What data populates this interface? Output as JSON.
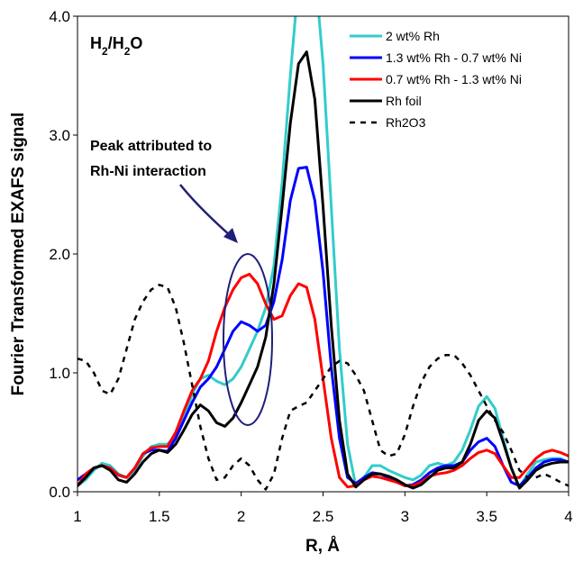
{
  "chart_data": {
    "type": "line",
    "xlabel": "R, Å",
    "ylabel": "Fourier Transformed EXAFS signal",
    "xlim": [
      1,
      4
    ],
    "ylim": [
      0,
      4
    ],
    "xticks": [
      "1",
      "1.5",
      "2",
      "2.5",
      "3",
      "3.5",
      "4"
    ],
    "yticks": [
      "0.0",
      "1.0",
      "2.0",
      "3.0",
      "4.0"
    ],
    "condition_label": {
      "main": "H",
      "sub1": "2",
      "mid": "/H",
      "sub2": "2",
      "end": "O"
    },
    "annotation": {
      "line1": "Peak attributed to",
      "line2": "Rh-Ni interaction"
    },
    "legend_position": "top-right",
    "series": [
      {
        "name": "2 wt% Rh",
        "color": "#33CCCC",
        "dash": "solid",
        "points": [
          [
            1.0,
            0.05
          ],
          [
            1.05,
            0.1
          ],
          [
            1.1,
            0.18
          ],
          [
            1.15,
            0.24
          ],
          [
            1.2,
            0.22
          ],
          [
            1.25,
            0.15
          ],
          [
            1.3,
            0.12
          ],
          [
            1.35,
            0.18
          ],
          [
            1.4,
            0.3
          ],
          [
            1.45,
            0.38
          ],
          [
            1.5,
            0.4
          ],
          [
            1.55,
            0.4
          ],
          [
            1.6,
            0.48
          ],
          [
            1.65,
            0.62
          ],
          [
            1.7,
            0.82
          ],
          [
            1.75,
            0.95
          ],
          [
            1.8,
            0.98
          ],
          [
            1.85,
            0.93
          ],
          [
            1.9,
            0.9
          ],
          [
            1.95,
            0.95
          ],
          [
            2.0,
            1.05
          ],
          [
            2.05,
            1.2
          ],
          [
            2.1,
            1.35
          ],
          [
            2.15,
            1.55
          ],
          [
            2.2,
            1.9
          ],
          [
            2.25,
            2.6
          ],
          [
            2.3,
            3.5
          ],
          [
            2.35,
            4.3
          ],
          [
            2.4,
            4.6
          ],
          [
            2.45,
            4.4
          ],
          [
            2.5,
            3.6
          ],
          [
            2.55,
            2.4
          ],
          [
            2.6,
            1.2
          ],
          [
            2.65,
            0.4
          ],
          [
            2.7,
            0.05
          ],
          [
            2.75,
            0.12
          ],
          [
            2.8,
            0.22
          ],
          [
            2.85,
            0.22
          ],
          [
            2.9,
            0.18
          ],
          [
            2.95,
            0.15
          ],
          [
            3.0,
            0.12
          ],
          [
            3.05,
            0.1
          ],
          [
            3.1,
            0.14
          ],
          [
            3.15,
            0.22
          ],
          [
            3.2,
            0.24
          ],
          [
            3.25,
            0.22
          ],
          [
            3.3,
            0.25
          ],
          [
            3.35,
            0.35
          ],
          [
            3.4,
            0.52
          ],
          [
            3.45,
            0.72
          ],
          [
            3.5,
            0.8
          ],
          [
            3.55,
            0.7
          ],
          [
            3.6,
            0.45
          ],
          [
            3.65,
            0.2
          ],
          [
            3.7,
            0.04
          ],
          [
            3.75,
            0.15
          ],
          [
            3.8,
            0.25
          ],
          [
            3.85,
            0.27
          ],
          [
            3.9,
            0.28
          ],
          [
            3.95,
            0.28
          ],
          [
            4.0,
            0.25
          ]
        ]
      },
      {
        "name": "1.3 wt% Rh - 0.7 wt% Ni",
        "color": "#0000FF",
        "dash": "solid",
        "points": [
          [
            1.0,
            0.1
          ],
          [
            1.05,
            0.15
          ],
          [
            1.1,
            0.2
          ],
          [
            1.15,
            0.22
          ],
          [
            1.2,
            0.2
          ],
          [
            1.25,
            0.14
          ],
          [
            1.3,
            0.12
          ],
          [
            1.35,
            0.2
          ],
          [
            1.4,
            0.32
          ],
          [
            1.45,
            0.35
          ],
          [
            1.5,
            0.35
          ],
          [
            1.55,
            0.34
          ],
          [
            1.6,
            0.45
          ],
          [
            1.65,
            0.6
          ],
          [
            1.7,
            0.75
          ],
          [
            1.75,
            0.88
          ],
          [
            1.8,
            0.95
          ],
          [
            1.85,
            1.05
          ],
          [
            1.9,
            1.2
          ],
          [
            1.95,
            1.35
          ],
          [
            2.0,
            1.43
          ],
          [
            2.05,
            1.4
          ],
          [
            2.1,
            1.35
          ],
          [
            2.15,
            1.4
          ],
          [
            2.2,
            1.6
          ],
          [
            2.25,
            1.95
          ],
          [
            2.3,
            2.45
          ],
          [
            2.35,
            2.72
          ],
          [
            2.4,
            2.73
          ],
          [
            2.45,
            2.45
          ],
          [
            2.5,
            1.85
          ],
          [
            2.55,
            1.05
          ],
          [
            2.6,
            0.45
          ],
          [
            2.65,
            0.12
          ],
          [
            2.7,
            0.07
          ],
          [
            2.75,
            0.12
          ],
          [
            2.8,
            0.16
          ],
          [
            2.85,
            0.15
          ],
          [
            2.9,
            0.12
          ],
          [
            2.95,
            0.08
          ],
          [
            3.0,
            0.05
          ],
          [
            3.05,
            0.06
          ],
          [
            3.1,
            0.1
          ],
          [
            3.15,
            0.16
          ],
          [
            3.2,
            0.2
          ],
          [
            3.25,
            0.22
          ],
          [
            3.3,
            0.22
          ],
          [
            3.35,
            0.25
          ],
          [
            3.4,
            0.35
          ],
          [
            3.45,
            0.42
          ],
          [
            3.5,
            0.45
          ],
          [
            3.55,
            0.38
          ],
          [
            3.6,
            0.22
          ],
          [
            3.65,
            0.08
          ],
          [
            3.7,
            0.05
          ],
          [
            3.75,
            0.12
          ],
          [
            3.8,
            0.2
          ],
          [
            3.85,
            0.25
          ],
          [
            3.9,
            0.27
          ],
          [
            3.95,
            0.27
          ],
          [
            4.0,
            0.25
          ]
        ]
      },
      {
        "name": "0.7 wt% Rh - 1.3 wt% Ni",
        "color": "#FF0000",
        "dash": "solid",
        "points": [
          [
            1.0,
            0.05
          ],
          [
            1.05,
            0.15
          ],
          [
            1.1,
            0.2
          ],
          [
            1.15,
            0.22
          ],
          [
            1.2,
            0.2
          ],
          [
            1.25,
            0.14
          ],
          [
            1.3,
            0.12
          ],
          [
            1.35,
            0.2
          ],
          [
            1.4,
            0.32
          ],
          [
            1.45,
            0.37
          ],
          [
            1.5,
            0.38
          ],
          [
            1.55,
            0.38
          ],
          [
            1.6,
            0.5
          ],
          [
            1.65,
            0.68
          ],
          [
            1.7,
            0.85
          ],
          [
            1.75,
            0.95
          ],
          [
            1.8,
            1.1
          ],
          [
            1.85,
            1.35
          ],
          [
            1.9,
            1.55
          ],
          [
            1.95,
            1.7
          ],
          [
            2.0,
            1.8
          ],
          [
            2.05,
            1.83
          ],
          [
            2.1,
            1.75
          ],
          [
            2.15,
            1.58
          ],
          [
            2.2,
            1.45
          ],
          [
            2.25,
            1.48
          ],
          [
            2.3,
            1.65
          ],
          [
            2.35,
            1.75
          ],
          [
            2.4,
            1.72
          ],
          [
            2.45,
            1.45
          ],
          [
            2.5,
            0.95
          ],
          [
            2.55,
            0.45
          ],
          [
            2.6,
            0.12
          ],
          [
            2.65,
            0.04
          ],
          [
            2.7,
            0.05
          ],
          [
            2.75,
            0.1
          ],
          [
            2.8,
            0.13
          ],
          [
            2.85,
            0.12
          ],
          [
            2.9,
            0.1
          ],
          [
            2.95,
            0.08
          ],
          [
            3.0,
            0.05
          ],
          [
            3.05,
            0.05
          ],
          [
            3.1,
            0.08
          ],
          [
            3.15,
            0.13
          ],
          [
            3.2,
            0.15
          ],
          [
            3.25,
            0.16
          ],
          [
            3.3,
            0.18
          ],
          [
            3.35,
            0.22
          ],
          [
            3.4,
            0.28
          ],
          [
            3.45,
            0.33
          ],
          [
            3.5,
            0.35
          ],
          [
            3.55,
            0.32
          ],
          [
            3.6,
            0.22
          ],
          [
            3.65,
            0.12
          ],
          [
            3.7,
            0.12
          ],
          [
            3.75,
            0.2
          ],
          [
            3.8,
            0.28
          ],
          [
            3.85,
            0.33
          ],
          [
            3.9,
            0.35
          ],
          [
            3.95,
            0.33
          ],
          [
            4.0,
            0.3
          ]
        ]
      },
      {
        "name": "Rh foil",
        "color": "#000000",
        "dash": "solid",
        "points": [
          [
            1.0,
            0.05
          ],
          [
            1.05,
            0.12
          ],
          [
            1.1,
            0.2
          ],
          [
            1.15,
            0.22
          ],
          [
            1.2,
            0.18
          ],
          [
            1.25,
            0.1
          ],
          [
            1.3,
            0.08
          ],
          [
            1.35,
            0.15
          ],
          [
            1.4,
            0.25
          ],
          [
            1.45,
            0.32
          ],
          [
            1.5,
            0.35
          ],
          [
            1.55,
            0.33
          ],
          [
            1.6,
            0.4
          ],
          [
            1.65,
            0.52
          ],
          [
            1.7,
            0.65
          ],
          [
            1.75,
            0.73
          ],
          [
            1.8,
            0.68
          ],
          [
            1.85,
            0.58
          ],
          [
            1.9,
            0.55
          ],
          [
            1.95,
            0.62
          ],
          [
            2.0,
            0.75
          ],
          [
            2.05,
            0.9
          ],
          [
            2.1,
            1.05
          ],
          [
            2.15,
            1.3
          ],
          [
            2.2,
            1.75
          ],
          [
            2.25,
            2.4
          ],
          [
            2.3,
            3.1
          ],
          [
            2.35,
            3.6
          ],
          [
            2.4,
            3.7
          ],
          [
            2.45,
            3.3
          ],
          [
            2.5,
            2.4
          ],
          [
            2.55,
            1.4
          ],
          [
            2.6,
            0.6
          ],
          [
            2.65,
            0.15
          ],
          [
            2.7,
            0.04
          ],
          [
            2.75,
            0.1
          ],
          [
            2.8,
            0.15
          ],
          [
            2.85,
            0.15
          ],
          [
            2.9,
            0.13
          ],
          [
            2.95,
            0.1
          ],
          [
            3.0,
            0.06
          ],
          [
            3.05,
            0.03
          ],
          [
            3.1,
            0.06
          ],
          [
            3.15,
            0.12
          ],
          [
            3.2,
            0.18
          ],
          [
            3.25,
            0.2
          ],
          [
            3.3,
            0.2
          ],
          [
            3.35,
            0.25
          ],
          [
            3.4,
            0.4
          ],
          [
            3.45,
            0.6
          ],
          [
            3.5,
            0.68
          ],
          [
            3.55,
            0.62
          ],
          [
            3.6,
            0.42
          ],
          [
            3.65,
            0.2
          ],
          [
            3.7,
            0.03
          ],
          [
            3.75,
            0.1
          ],
          [
            3.8,
            0.18
          ],
          [
            3.85,
            0.22
          ],
          [
            3.9,
            0.24
          ],
          [
            3.95,
            0.25
          ],
          [
            4.0,
            0.25
          ]
        ]
      },
      {
        "name": "Rh2O3",
        "color": "#000000",
        "dash": "dashed",
        "points": [
          [
            1.0,
            1.12
          ],
          [
            1.05,
            1.1
          ],
          [
            1.1,
            1.0
          ],
          [
            1.15,
            0.85
          ],
          [
            1.2,
            0.82
          ],
          [
            1.25,
            0.95
          ],
          [
            1.3,
            1.2
          ],
          [
            1.35,
            1.45
          ],
          [
            1.4,
            1.6
          ],
          [
            1.45,
            1.7
          ],
          [
            1.5,
            1.74
          ],
          [
            1.55,
            1.72
          ],
          [
            1.6,
            1.55
          ],
          [
            1.65,
            1.25
          ],
          [
            1.7,
            0.9
          ],
          [
            1.75,
            0.55
          ],
          [
            1.8,
            0.28
          ],
          [
            1.85,
            0.1
          ],
          [
            1.9,
            0.12
          ],
          [
            1.95,
            0.22
          ],
          [
            2.0,
            0.28
          ],
          [
            2.05,
            0.22
          ],
          [
            2.1,
            0.1
          ],
          [
            2.15,
            0.02
          ],
          [
            2.2,
            0.15
          ],
          [
            2.25,
            0.45
          ],
          [
            2.3,
            0.68
          ],
          [
            2.35,
            0.72
          ],
          [
            2.4,
            0.75
          ],
          [
            2.45,
            0.85
          ],
          [
            2.5,
            0.95
          ],
          [
            2.55,
            1.05
          ],
          [
            2.6,
            1.1
          ],
          [
            2.65,
            1.08
          ],
          [
            2.7,
            0.98
          ],
          [
            2.75,
            0.85
          ],
          [
            2.8,
            0.6
          ],
          [
            2.85,
            0.35
          ],
          [
            2.9,
            0.3
          ],
          [
            2.95,
            0.32
          ],
          [
            3.0,
            0.48
          ],
          [
            3.05,
            0.72
          ],
          [
            3.1,
            0.92
          ],
          [
            3.15,
            1.05
          ],
          [
            3.2,
            1.12
          ],
          [
            3.25,
            1.15
          ],
          [
            3.3,
            1.15
          ],
          [
            3.35,
            1.08
          ],
          [
            3.4,
            0.98
          ],
          [
            3.45,
            0.85
          ],
          [
            3.5,
            0.72
          ],
          [
            3.55,
            0.6
          ],
          [
            3.6,
            0.5
          ],
          [
            3.65,
            0.35
          ],
          [
            3.7,
            0.18
          ],
          [
            3.75,
            0.12
          ],
          [
            3.8,
            0.12
          ],
          [
            3.85,
            0.15
          ],
          [
            3.9,
            0.12
          ],
          [
            3.95,
            0.08
          ],
          [
            4.0,
            0.05
          ]
        ]
      }
    ]
  }
}
